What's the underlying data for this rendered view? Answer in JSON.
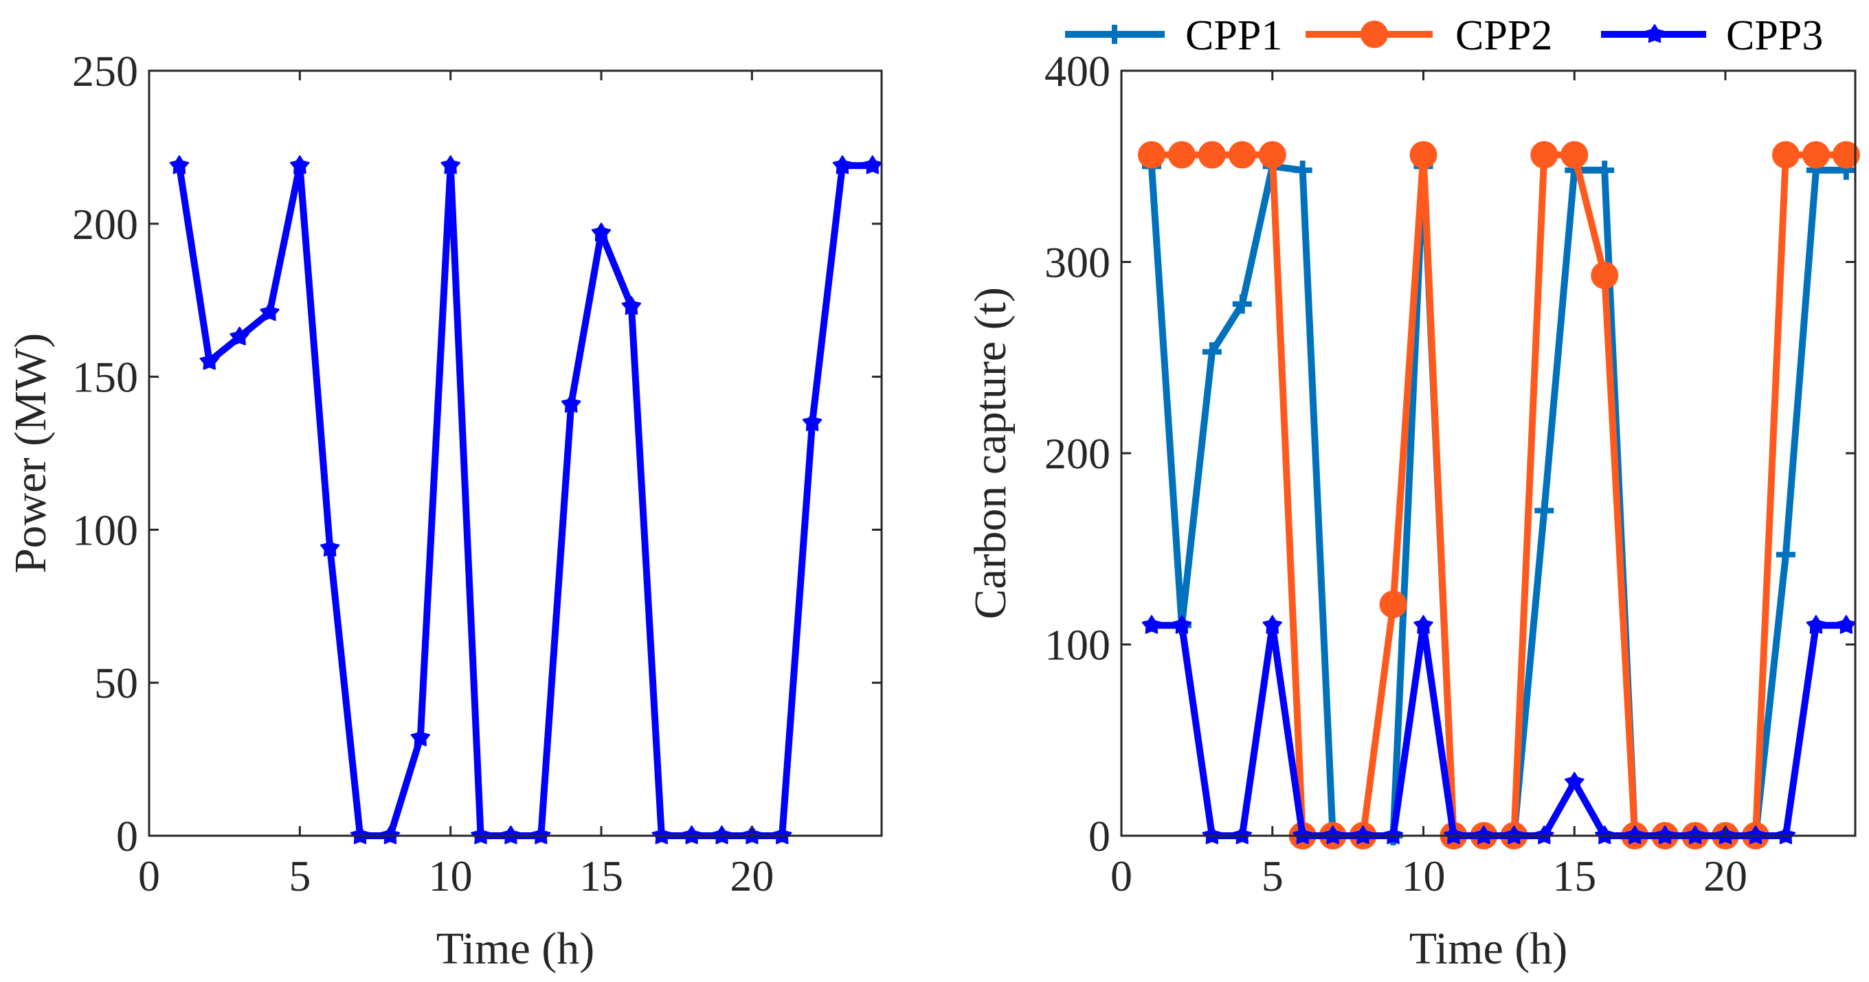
{
  "chart_data": [
    {
      "type": "line",
      "xlabel": "Time (h)",
      "ylabel": "Power (MW)",
      "xlim": [
        0,
        24.3
      ],
      "ylim": [
        0,
        250
      ],
      "xticks": [
        0,
        5,
        10,
        15,
        20
      ],
      "yticks": [
        0,
        50,
        100,
        150,
        200,
        250
      ],
      "x": [
        1,
        2,
        3,
        4,
        5,
        6,
        7,
        8,
        9,
        10,
        11,
        12,
        13,
        14,
        15,
        16,
        17,
        18,
        19,
        20,
        21,
        22,
        23,
        24
      ],
      "series": [
        {
          "name": "Power",
          "color": "#0000ff",
          "marker": "star",
          "values": [
            219,
            155,
            163,
            171,
            219,
            94,
            0,
            0,
            32,
            219,
            0,
            0,
            0,
            141,
            197,
            173,
            0,
            0,
            0,
            0,
            0,
            135,
            219,
            219
          ]
        }
      ]
    },
    {
      "type": "line",
      "xlabel": "Time (h)",
      "ylabel": "Carbon capture (t)",
      "xlim": [
        0,
        24.3
      ],
      "ylim": [
        0,
        400
      ],
      "xticks": [
        0,
        5,
        10,
        15,
        20
      ],
      "yticks": [
        0,
        100,
        200,
        300,
        400
      ],
      "x": [
        1,
        2,
        3,
        4,
        5,
        6,
        7,
        8,
        9,
        10,
        11,
        12,
        13,
        14,
        15,
        16,
        17,
        18,
        19,
        20,
        21,
        22,
        23,
        24
      ],
      "legend": {
        "location": "top",
        "orientation": "horizontal"
      },
      "series": [
        {
          "name": "CPP1",
          "color": "#0072bd",
          "marker": "plus",
          "values": [
            350,
            110,
            253,
            278,
            350,
            348,
            0,
            0,
            0,
            350,
            0,
            0,
            0,
            170,
            348,
            348,
            0,
            0,
            0,
            0,
            0,
            147,
            348,
            348
          ]
        },
        {
          "name": "CPP2",
          "color": "#ff5a1e",
          "marker": "circle",
          "values": [
            356,
            356,
            356,
            356,
            356,
            0,
            0,
            0,
            121,
            356,
            0,
            0,
            0,
            356,
            356,
            293,
            0,
            0,
            0,
            0,
            0,
            356,
            356,
            356
          ]
        },
        {
          "name": "CPP3",
          "color": "#0000ff",
          "marker": "star",
          "values": [
            110,
            110,
            0,
            0,
            110,
            0,
            0,
            0,
            0,
            110,
            0,
            0,
            0,
            0,
            28,
            0,
            0,
            0,
            0,
            0,
            0,
            0,
            110,
            110
          ]
        }
      ]
    }
  ]
}
